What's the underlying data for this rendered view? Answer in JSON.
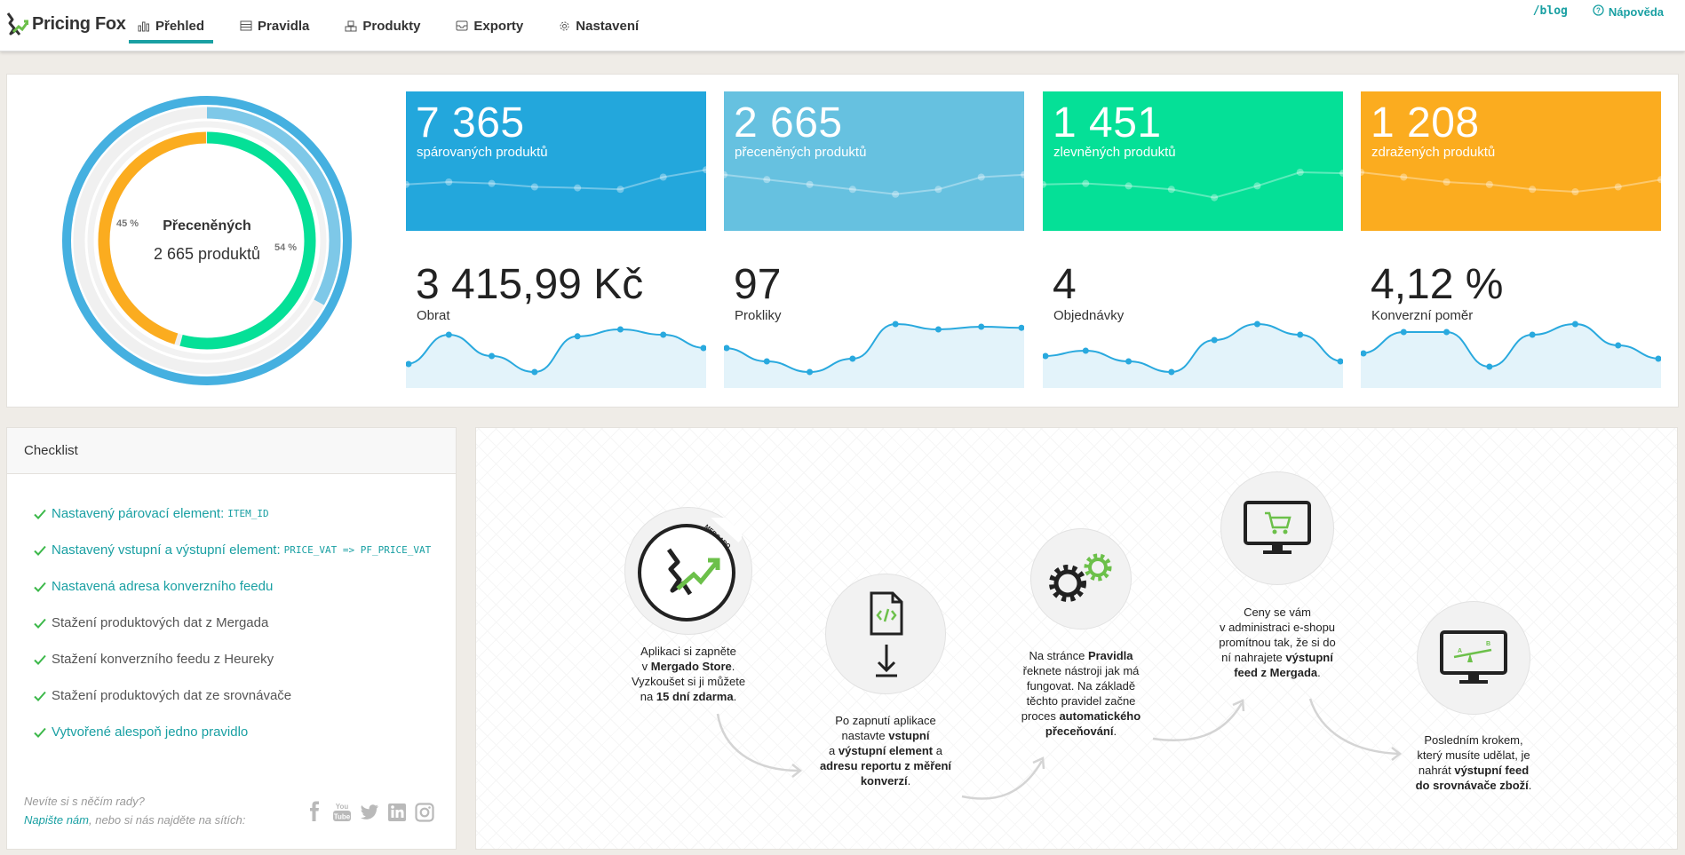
{
  "app": {
    "logo_text": "Pricing Fox",
    "accent": "#1aa0a3"
  },
  "nav": {
    "items": [
      {
        "label": "Přehled",
        "icon": "bar-chart-icon",
        "active": true
      },
      {
        "label": "Pravidla",
        "icon": "table-icon"
      },
      {
        "label": "Produkty",
        "icon": "boxes-icon"
      },
      {
        "label": "Exporty",
        "icon": "inbox-icon"
      },
      {
        "label": "Nastavení",
        "icon": "gear-icon"
      }
    ],
    "blog": "/blog",
    "help": "Nápověda"
  },
  "donut": {
    "title": "Přeceněných",
    "subtitle": "2 665 produktů",
    "pct_left": "45 %",
    "pct_right": "54 %",
    "segments": {
      "orange_fraction": 0.45,
      "green_fraction": 0.54
    }
  },
  "tiles": [
    {
      "value": "7 365",
      "label": "spárovaných produktů",
      "color": "#23a7dc"
    },
    {
      "value": "2 665",
      "label": "přeceněných produktů",
      "color": "#66c1e0"
    },
    {
      "value": "1 451",
      "label": "zlevněných produktů",
      "color": "#05e097"
    },
    {
      "value": "1 208",
      "label": "zdražených produktů",
      "color": "#fbac1f"
    }
  ],
  "metrics": [
    {
      "value": "3 415,99 Kč",
      "label": "Obrat"
    },
    {
      "value": "97",
      "label": "Prokliky"
    },
    {
      "value": "4",
      "label": "Objednávky"
    },
    {
      "value": "4,12 %",
      "label": "Konverzní poměr"
    }
  ],
  "checklist": {
    "title": "Checklist",
    "items": [
      {
        "text": "Nastavený párovací element:",
        "code": "ITEM_ID",
        "done": true
      },
      {
        "text": "Nastavený vstupní a výstupní element:",
        "code": "PRICE_VAT => PF_PRICE_VAT",
        "done": true
      },
      {
        "text": "Nastavená adresa konverzního feedu",
        "code": "",
        "done": true
      },
      {
        "text": "Stažení produktových dat z Mergada",
        "code": "",
        "done": false
      },
      {
        "text": "Stažení konverzního feedu z Heureky",
        "code": "",
        "done": false
      },
      {
        "text": "Stažení produktových dat ze srovnávače",
        "code": "",
        "done": false
      },
      {
        "text": "Vytvořené alespoň jedno pravidlo",
        "code": "",
        "done": true
      }
    ],
    "footer_line1": "Nevíte si s něčím rady?",
    "footer_link": "Napište nám",
    "footer_line2": ", nebo si nás najděte na sítích:",
    "social": [
      "facebook-icon",
      "youtube-icon",
      "twitter-icon",
      "linkedin-icon",
      "instagram-icon"
    ]
  },
  "steps": {
    "step1": {
      "a": "Aplikaci si zapněte",
      "b": "v ",
      "b_bold": "Mergado Store",
      "b2": ".",
      "c": "Vyzkoušet si ji můžete",
      "d": "na ",
      "d_bold": "15 dní zdarma",
      "d2": ".",
      "badge": "MERGADO"
    },
    "step2": {
      "a": "Po zapnutí aplikace",
      "b": "nastavte ",
      "b_bold": "vstupní",
      "c": "a ",
      "c_bold": "výstupní element",
      "c2": " a",
      "d_bold": "adresu reportu z měření",
      "e_bold": "konverzí",
      "e2": "."
    },
    "step3": {
      "a": "Na stránce ",
      "a_bold": "Pravidla",
      "b": "řeknete nástroji jak má",
      "c": "fungovat. Na základě",
      "d": "těchto pravidel začne",
      "e": "proces ",
      "e_bold": "automatického",
      "f_bold": "přeceňování",
      "f2": "."
    },
    "step4": {
      "a": "Ceny se vám",
      "b": "v administraci e-shopu",
      "c": "promítnou tak, že si do",
      "d": "ní nahrajete ",
      "d_bold": "výstupní",
      "e_bold": "feed z Mergada",
      "e2": "."
    },
    "step5": {
      "a": "Posledním krokem,",
      "b": "který musíte udělat, je",
      "c": "nahrát ",
      "c_bold": "výstupní feed",
      "d_bold": "do srovnávače zboží",
      "d2": "."
    }
  }
}
